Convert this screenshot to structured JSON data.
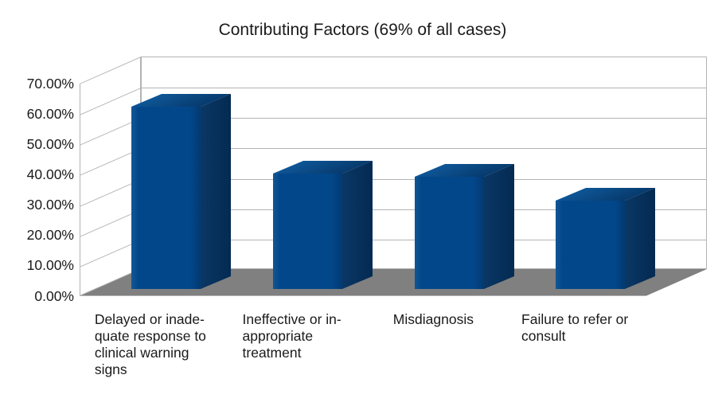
{
  "title": "Contributing Factors (69% of all cases)",
  "colors": {
    "background": "#ffffff",
    "text": "#1a1a1a",
    "grid": "#b3b3b3",
    "floor": "#808080",
    "bar_base": "#004586",
    "bar_front_light": "#115795",
    "bar_front": "#03478b",
    "bar_front_dark": "#023a72",
    "bar_side_light": "#0b3765",
    "bar_side_dark": "#032a52",
    "bar_top_light": "#0e5697",
    "bar_top_dark": "#073a6c"
  },
  "chart_data": {
    "type": "bar",
    "style": "3d-column",
    "title": "Contributing Factors (69% of all cases)",
    "categories": [
      "Delayed or inadequate response to clinical warning signs",
      "Ineffective or inappropriate treatment",
      "Misdiagnosis",
      "Failure to refer or consult"
    ],
    "category_label_lines": [
      "Delayed or inade-\nquate response to\nclinical warning\nsigns",
      "Ineffective or in-\nappropriate\ntreatment",
      "Misdiagnosis",
      "Failure to refer or\nconsult"
    ],
    "values": [
      60,
      38,
      37,
      29
    ],
    "unit": "%",
    "ylim": [
      0,
      70
    ],
    "y_tick_interval": 10,
    "y_tick_labels": [
      "0.00%",
      "10.00%",
      "20.00%",
      "30.00%",
      "40.00%",
      "50.00%",
      "60.00%",
      "70.00%"
    ],
    "grid": true,
    "legend": "none",
    "xlabel": "",
    "ylabel": ""
  }
}
